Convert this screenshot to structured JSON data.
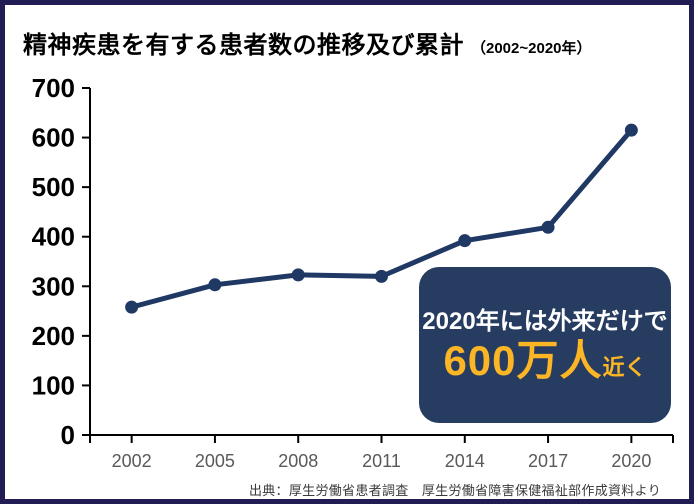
{
  "page": {
    "border_color": "#221C54",
    "background_color": "#FFFFFF"
  },
  "header": {
    "title": "精神疾患を有する患者数の推移及び累計",
    "subtitle": "（2002~2020年）"
  },
  "chart_data": {
    "type": "line",
    "title": "精神疾患を有する患者数の推移及び累計（2002~2020年）",
    "categories": [
      "2002",
      "2005",
      "2008",
      "2011",
      "2014",
      "2017",
      "2020"
    ],
    "values": [
      258,
      303,
      323,
      320,
      392,
      419,
      615
    ],
    "xlabel": "",
    "ylabel": "",
    "ylim": [
      0,
      700
    ],
    "ytick_step": 100,
    "grid": false,
    "legend": false,
    "line_color": "#1F3864",
    "marker": "circle",
    "axis_color": "#000000",
    "xtick_label_color": "#595959",
    "ytick_label_color": "#000000"
  },
  "annotation": {
    "line1": "2020年には外来だけで",
    "value": "600万人",
    "suffix": "近く",
    "box_color": "#263C60",
    "text_color": "#FFFFFF",
    "accent_color": "#FCB525"
  },
  "footer": {
    "source": "出典：厚生労働省患者調査　厚生労働省障害保健福祉部作成資料より"
  }
}
